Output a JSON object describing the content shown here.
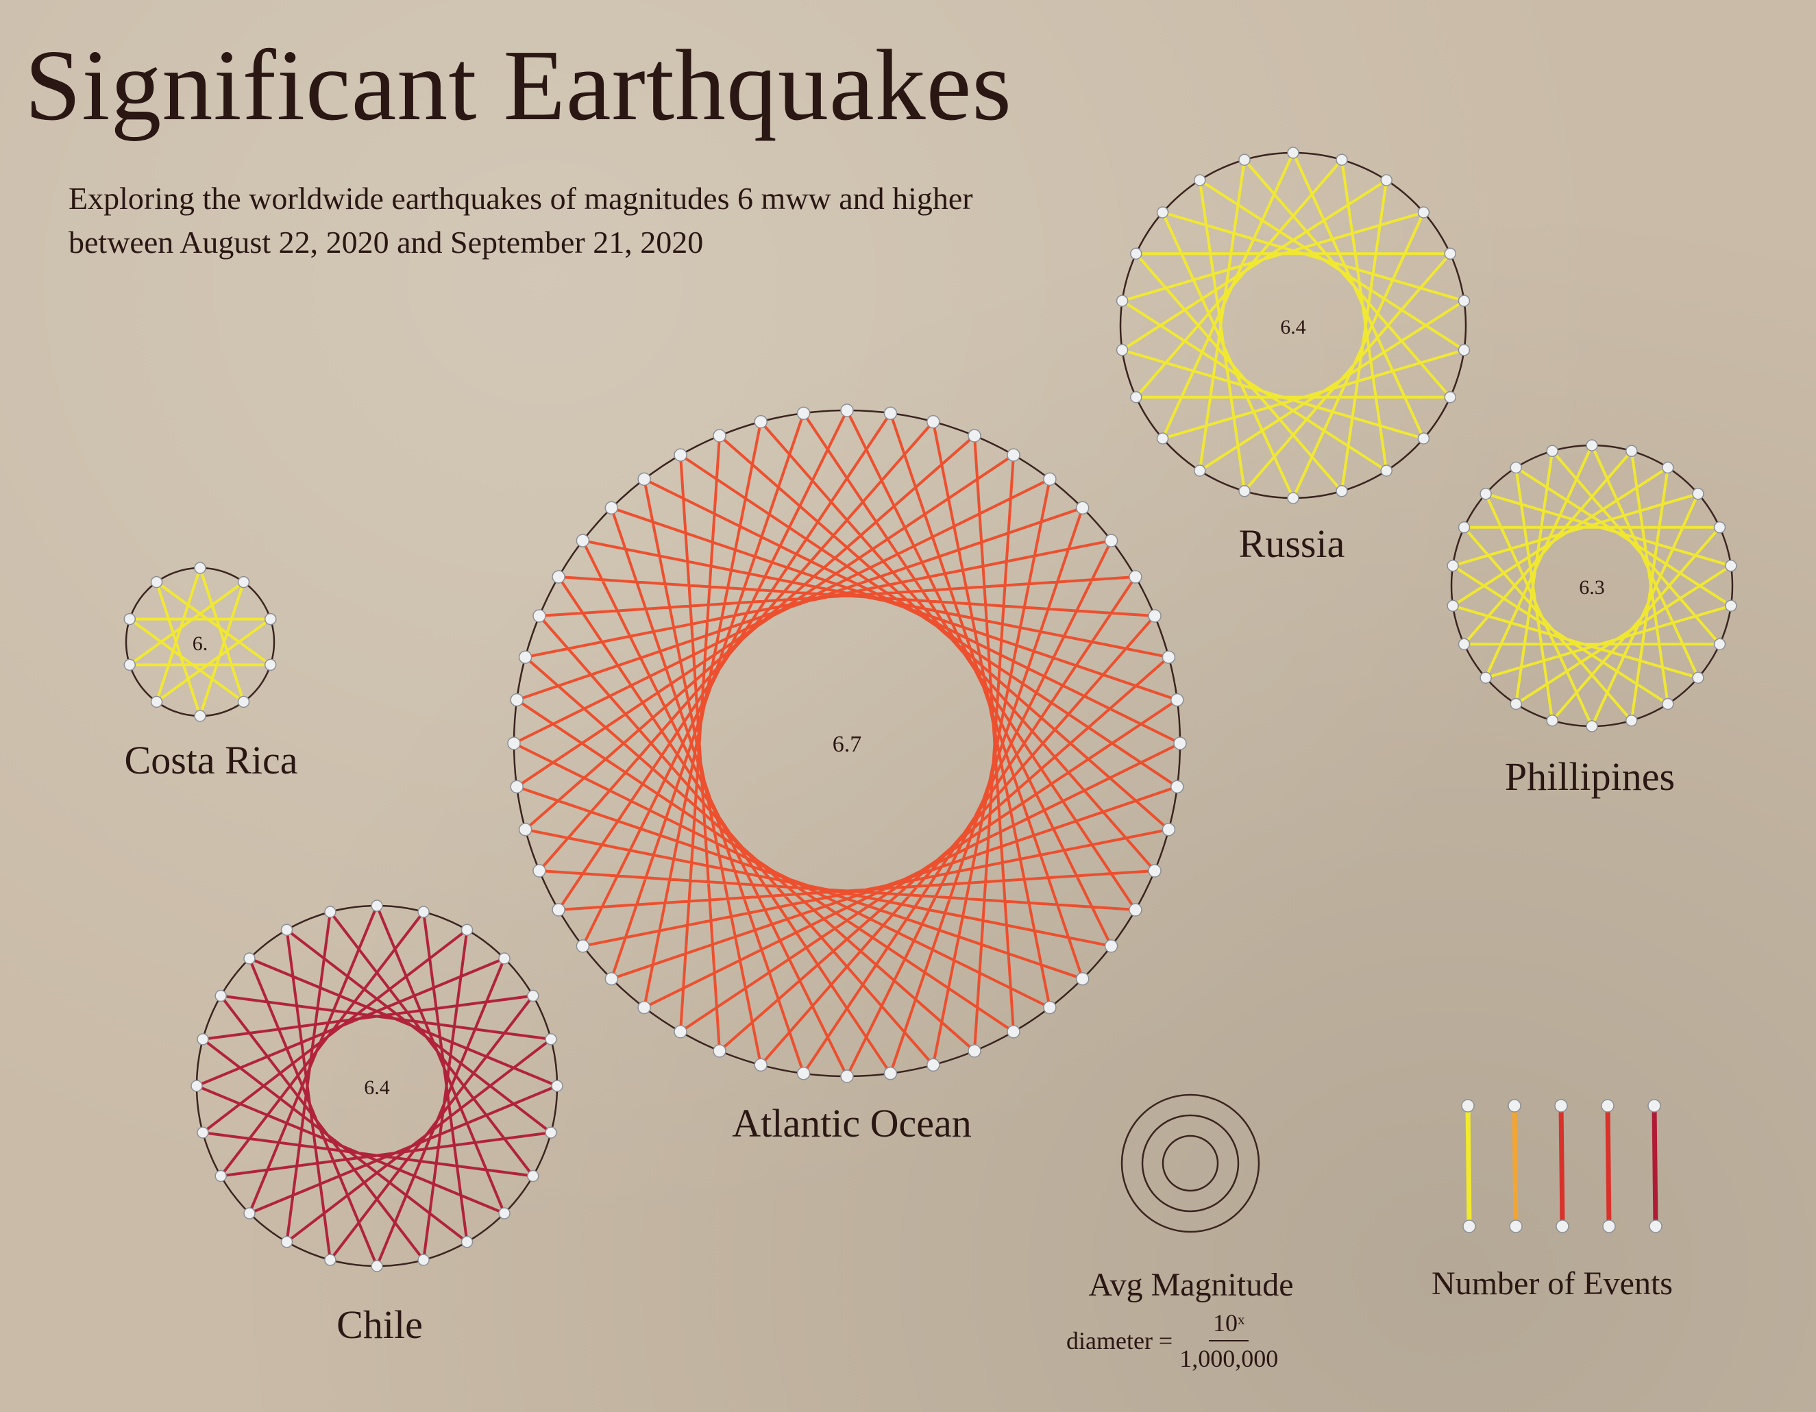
{
  "title": "Significant Earthquakes",
  "subtitle": "Exploring the worldwide earthquakes of magnitudes 6 mww and higher between August 22, 2020 and September 21, 2020",
  "colors": {
    "background": "#c9bba7",
    "text": "#2a1714",
    "nail": "#eef0f2",
    "thread_yellow": "#f2ea2c",
    "thread_orange": "#f3a533",
    "thread_redorange": "#ee4a28",
    "thread_red": "#d8322a",
    "thread_crimson": "#b01a35"
  },
  "regions": [
    {
      "name": "Costa Rica",
      "magnitude": "6.",
      "thread": "yellow"
    },
    {
      "name": "Atlantic Ocean",
      "magnitude": "6.7",
      "thread": "redorange"
    },
    {
      "name": "Russia",
      "magnitude": "6.4",
      "thread": "yellow"
    },
    {
      "name": "Phillipines",
      "magnitude": "6.3",
      "thread": "yellow"
    },
    {
      "name": "Chile",
      "magnitude": "6.4",
      "thread": "crimson"
    }
  ],
  "legend": {
    "magnitude_title": "Avg Magnitude",
    "formula_prefix": "diameter =",
    "formula_numerator": "10ˣ",
    "formula_denominator": "1,000,000",
    "events_title": "Number of Events",
    "event_colors": [
      "yellow",
      "orange",
      "red",
      "red",
      "crimson"
    ]
  }
}
